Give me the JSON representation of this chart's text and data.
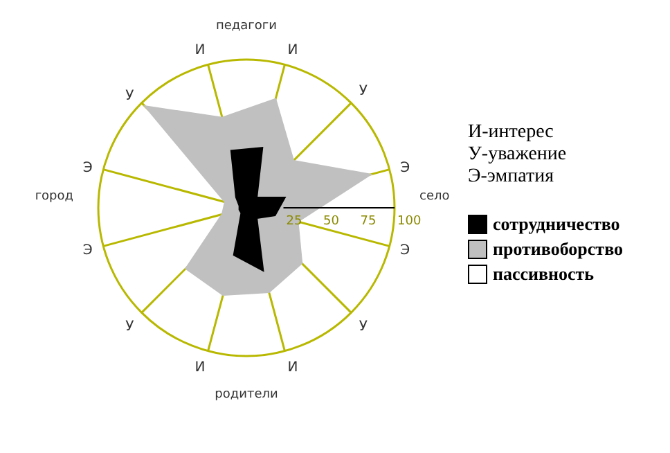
{
  "chart_data": {
    "type": "radar",
    "categories": [
      "И",
      "У",
      "Э",
      "Э",
      "У",
      "И",
      "И",
      "У",
      "Э",
      "Э",
      "У",
      "И"
    ],
    "series": [
      {
        "name": "противоборство",
        "color": "#c0c0c0",
        "values": [
          76,
          45,
          87,
          36,
          53,
          59,
          61,
          58,
          17,
          15,
          97,
          63
        ]
      },
      {
        "name": "сотрудничество",
        "color": "#000000",
        "values": [
          42,
          10,
          27,
          20,
          10,
          44,
          33,
          5,
          5,
          5,
          10,
          40
        ]
      }
    ],
    "ylim": [
      0,
      100
    ],
    "yticks": [
      25,
      50,
      75,
      100
    ],
    "grid": true,
    "legend": "right",
    "annotations": [
      "педагоги",
      "село",
      "родители",
      "город",
      "И-интерес",
      "У-уважение",
      "Э-эмпатия",
      "пассивность"
    ]
  }
}
